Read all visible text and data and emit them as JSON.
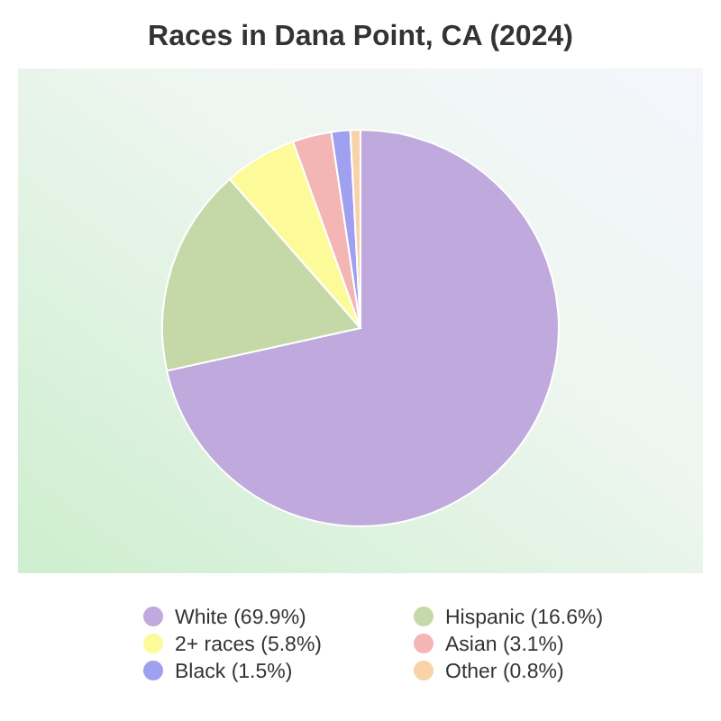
{
  "chart_data": {
    "type": "pie",
    "title": "Races in Dana Point, CA (2024)",
    "categories": [
      "White",
      "Hispanic",
      "2+ races",
      "Asian",
      "Black",
      "Other"
    ],
    "values": [
      69.9,
      16.6,
      5.8,
      3.1,
      1.5,
      0.8
    ],
    "value_labels": [
      "(69.9%)",
      "(16.6%)",
      "(5.8%)",
      "(3.1%)",
      "(1.5%)",
      "(0.8%)"
    ],
    "colors": [
      "#c0a9dc",
      "#c5d9a8",
      "#fdfa9a",
      "#f4b5b5",
      "#a0a0f0",
      "#f8d2a8"
    ],
    "legend": "bottom"
  }
}
